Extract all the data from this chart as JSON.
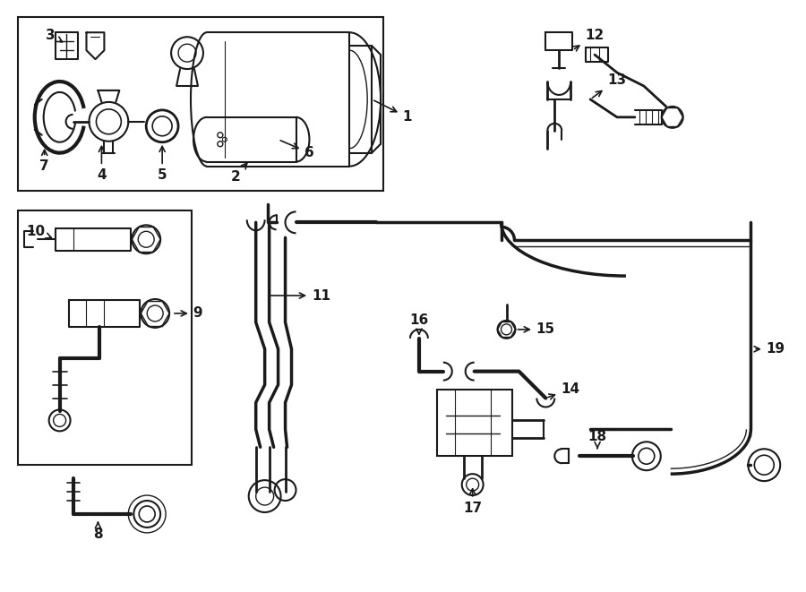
{
  "bg_color": "#ffffff",
  "line_color": "#1a1a1a",
  "figsize": [
    9.0,
    6.61
  ],
  "dpi": 100
}
